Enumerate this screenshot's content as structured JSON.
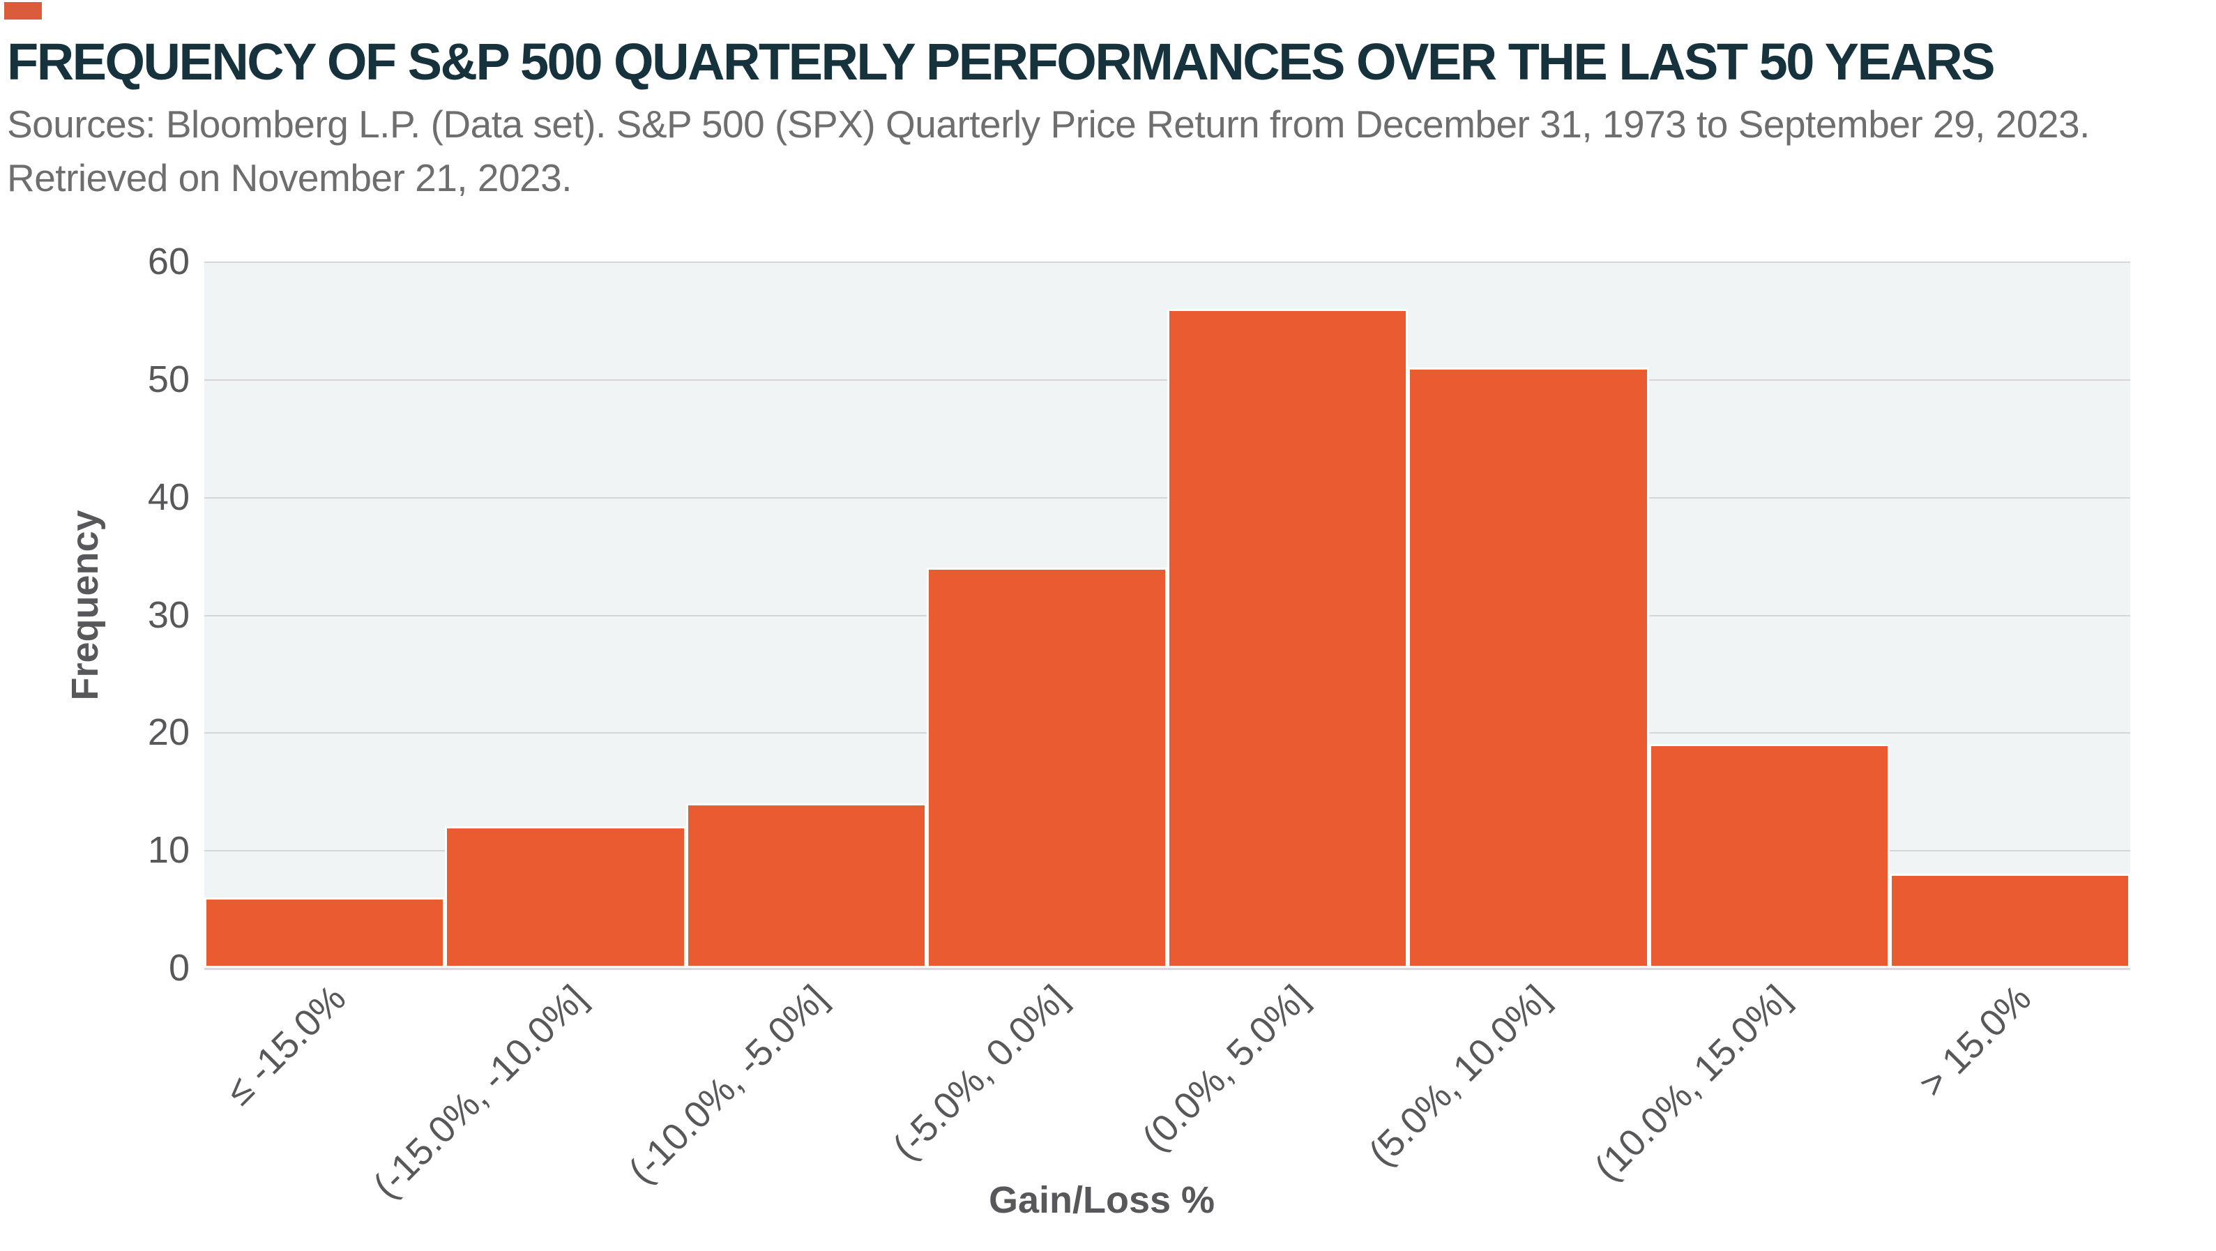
{
  "header": {
    "accent_color": "#db5c3b",
    "sources_line1": "Sources: Bloomberg L.P. (Data set). S&P 500 (SPX) Quarterly Price Return from December 31, 1973 to September 29, 2023.",
    "sources_line2": "Retrieved on November 21, 2023."
  },
  "chart_data": {
    "type": "bar",
    "title": "FREQUENCY OF S&P 500 QUARTERLY PERFORMANCES OVER THE LAST 50 YEARS",
    "categories": [
      "≤ -15.0%",
      "(-15.0%, -10.0%]",
      "(-10.0%, -5.0%]",
      "(-5.0%, 0.0%]",
      "(0.0%, 5.0%]",
      "(5.0%, 10.0%]",
      "(10.0%, 15.0%]",
      "> 15.0%"
    ],
    "values": [
      6,
      12,
      14,
      34,
      56,
      51,
      19,
      8
    ],
    "xlabel": "Gain/Loss %",
    "ylabel": "Frequency",
    "ylim": [
      0,
      60
    ],
    "yticks": [
      0,
      10,
      20,
      30,
      40,
      50,
      60
    ],
    "grid": "horizontal",
    "legend": "none",
    "colors": {
      "bar": "#eb5b31",
      "bar_edge": "#ffffff",
      "plot_background": "#f1f4f5",
      "gridline": "#d6d6d6",
      "title_text": "#16333d",
      "sources_text": "#6e6e6e",
      "tick_text": "#58585a",
      "axis_title_text": "#58585a"
    }
  }
}
